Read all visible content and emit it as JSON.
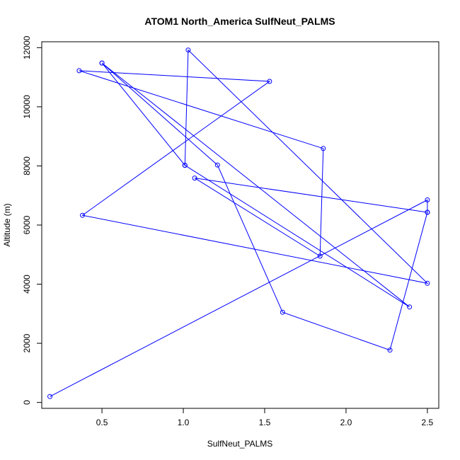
{
  "chart_data": {
    "type": "line",
    "title": "ATOM1 North_America SulfNeut_PALMS",
    "xlabel": "SulfNeut_PALMS",
    "ylabel": "Altitude (m)",
    "xlim": [
      0.13,
      2.57
    ],
    "ylim": [
      -200,
      12200
    ],
    "xticks": [
      0.5,
      1.0,
      1.5,
      2.0,
      2.5
    ],
    "xtick_labels": [
      "0.5",
      "1.0",
      "1.5",
      "2.0",
      "2.5"
    ],
    "yticks": [
      0,
      2000,
      4000,
      6000,
      8000,
      10000,
      12000
    ],
    "ytick_labels": [
      "0",
      "2000",
      "4000",
      "6000",
      "8000",
      "10000",
      "12000"
    ],
    "grid": false,
    "series": [
      {
        "color": "#0000ff",
        "x": [
          0.18,
          2.5,
          2.5,
          2.27,
          1.61,
          1.21,
          0.5,
          1.01,
          1.03,
          2.5,
          0.38,
          1.53,
          0.36,
          1.86,
          1.84,
          1.07,
          2.5
        ],
        "y": [
          200,
          6850,
          6430,
          1770,
          3050,
          8030,
          11480,
          8020,
          11920,
          4030,
          6330,
          10860,
          11220,
          8590,
          4950,
          7590,
          6430
        ]
      },
      {
        "color": "#0000ff",
        "x": [
          0.5,
          2.39,
          1.01
        ],
        "y": [
          11480,
          3230,
          8020
        ]
      }
    ]
  }
}
